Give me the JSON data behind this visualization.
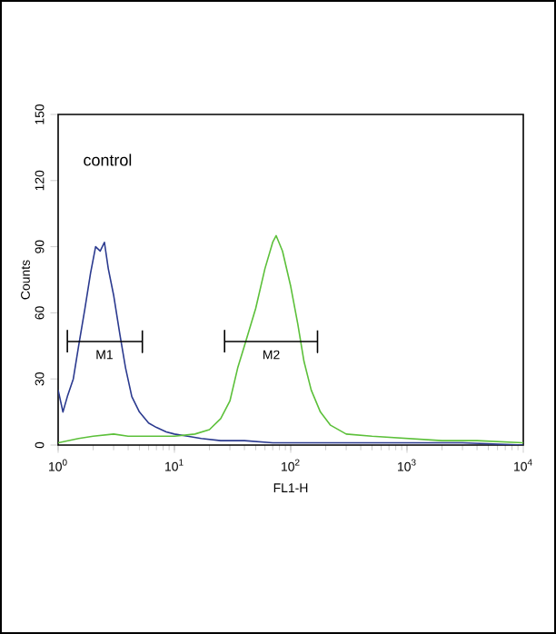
{
  "chart_data": {
    "type": "line",
    "xlabel": "FL1-H",
    "ylabel": "Counts",
    "log": "x",
    "xlim": [
      1,
      10000
    ],
    "ylim": [
      0,
      150
    ],
    "xticks": [
      {
        "value": 1,
        "label": "10$^{0}$"
      },
      {
        "value": 10,
        "label": "10$^{1}$"
      },
      {
        "value": 100,
        "label": "10$^{2}$"
      },
      {
        "value": 1000,
        "label": "10$^{3}$"
      },
      {
        "value": 10000,
        "label": "10$^{4}$"
      }
    ],
    "yticks": [
      0,
      30,
      60,
      90,
      120,
      150
    ],
    "annotations": [
      "control",
      {
        "text": "M1",
        "x": 2.5,
        "y": 44
      },
      {
        "text": "M2",
        "x": 68,
        "y": 44
      }
    ],
    "series": [
      {
        "color": "#2b3a8f",
        "x": [
          1,
          1.1,
          1.2,
          1.35,
          1.5,
          1.7,
          1.9,
          2.1,
          2.3,
          2.5,
          2.7,
          3.0,
          3.4,
          3.8,
          4.3,
          5,
          6,
          7,
          8.5,
          10,
          13,
          17,
          25,
          40,
          70,
          100,
          200,
          500,
          1000,
          3000,
          10000
        ],
        "values": [
          25,
          15,
          22,
          30,
          45,
          62,
          78,
          90,
          88,
          92,
          80,
          68,
          50,
          35,
          22,
          15,
          10,
          8,
          6,
          5,
          4,
          3,
          2,
          2,
          1,
          1,
          1,
          1,
          1,
          1,
          0
        ]
      },
      {
        "color": "#5cc03a",
        "x": [
          1,
          1.5,
          2,
          3,
          4,
          6,
          10,
          15,
          20,
          25,
          30,
          35,
          40,
          50,
          60,
          70,
          75,
          85,
          100,
          115,
          130,
          150,
          180,
          220,
          300,
          500,
          1000,
          2000,
          4000,
          10000
        ],
        "values": [
          1,
          3,
          4,
          5,
          4,
          4,
          4,
          5,
          7,
          12,
          20,
          35,
          45,
          62,
          80,
          92,
          95,
          88,
          72,
          55,
          38,
          25,
          15,
          9,
          5,
          4,
          3,
          2,
          2,
          1
        ]
      },
      {
        "color": "#000000",
        "x": [
          1.2,
          1.2,
          1.2,
          5.3,
          5.3,
          5.3
        ],
        "values": [
          42,
          52,
          47,
          47,
          42,
          52
        ]
      },
      {
        "color": "#000000",
        "x": [
          27,
          27,
          27,
          170,
          170,
          170
        ],
        "values": [
          42,
          52,
          47,
          47,
          42,
          52
        ]
      }
    ]
  }
}
